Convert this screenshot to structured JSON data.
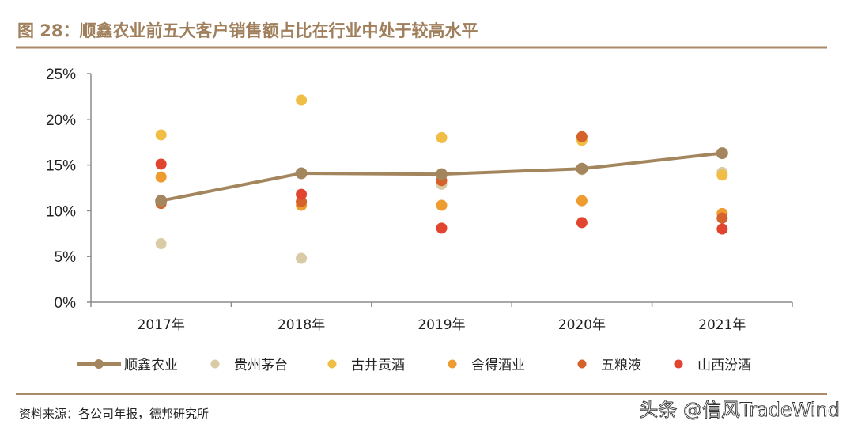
{
  "chart_data": {
    "type": "scatter",
    "title": "图 28：顺鑫农业前五大客户销售额占比在行业中处于较高水平",
    "categories": [
      "2017年",
      "2018年",
      "2019年",
      "2020年",
      "2021年"
    ],
    "ylim": [
      0,
      25
    ],
    "yticks": [
      "0%",
      "5%",
      "10%",
      "15%",
      "20%",
      "25%"
    ],
    "yunit": "%",
    "grid": false,
    "legend": "bottom",
    "series": [
      {
        "name": "顺鑫农业",
        "mark": "line",
        "color": "#a4865e",
        "values": [
          11.1,
          14.1,
          14.0,
          14.6,
          16.3
        ]
      },
      {
        "name": "贵州茅台",
        "mark": "point",
        "color": "#d8cba6",
        "values": [
          6.4,
          4.8,
          12.9,
          14.5,
          14.2
        ]
      },
      {
        "name": "古井贡酒",
        "mark": "point",
        "color": "#f0bd45",
        "values": [
          18.3,
          22.1,
          18.0,
          17.7,
          13.9
        ]
      },
      {
        "name": "舍得酒业",
        "mark": "point",
        "color": "#ee9b30",
        "values": [
          13.7,
          10.6,
          10.6,
          11.1,
          9.7
        ]
      },
      {
        "name": "五粮液",
        "mark": "point",
        "color": "#d4622a",
        "values": [
          10.8,
          11.0,
          13.3,
          18.1,
          9.2
        ]
      },
      {
        "name": "山西汾酒",
        "mark": "point",
        "color": "#e2452f",
        "values": [
          15.1,
          11.8,
          8.1,
          8.7,
          8.0
        ]
      }
    ]
  },
  "source": "资料来源：各公司年报，德邦研究所",
  "watermark": "头条 @信风TradeWind",
  "colors": {
    "accent": "#a07f5c",
    "rule": "#a88a6a",
    "axis": "#8c8c8c"
  }
}
